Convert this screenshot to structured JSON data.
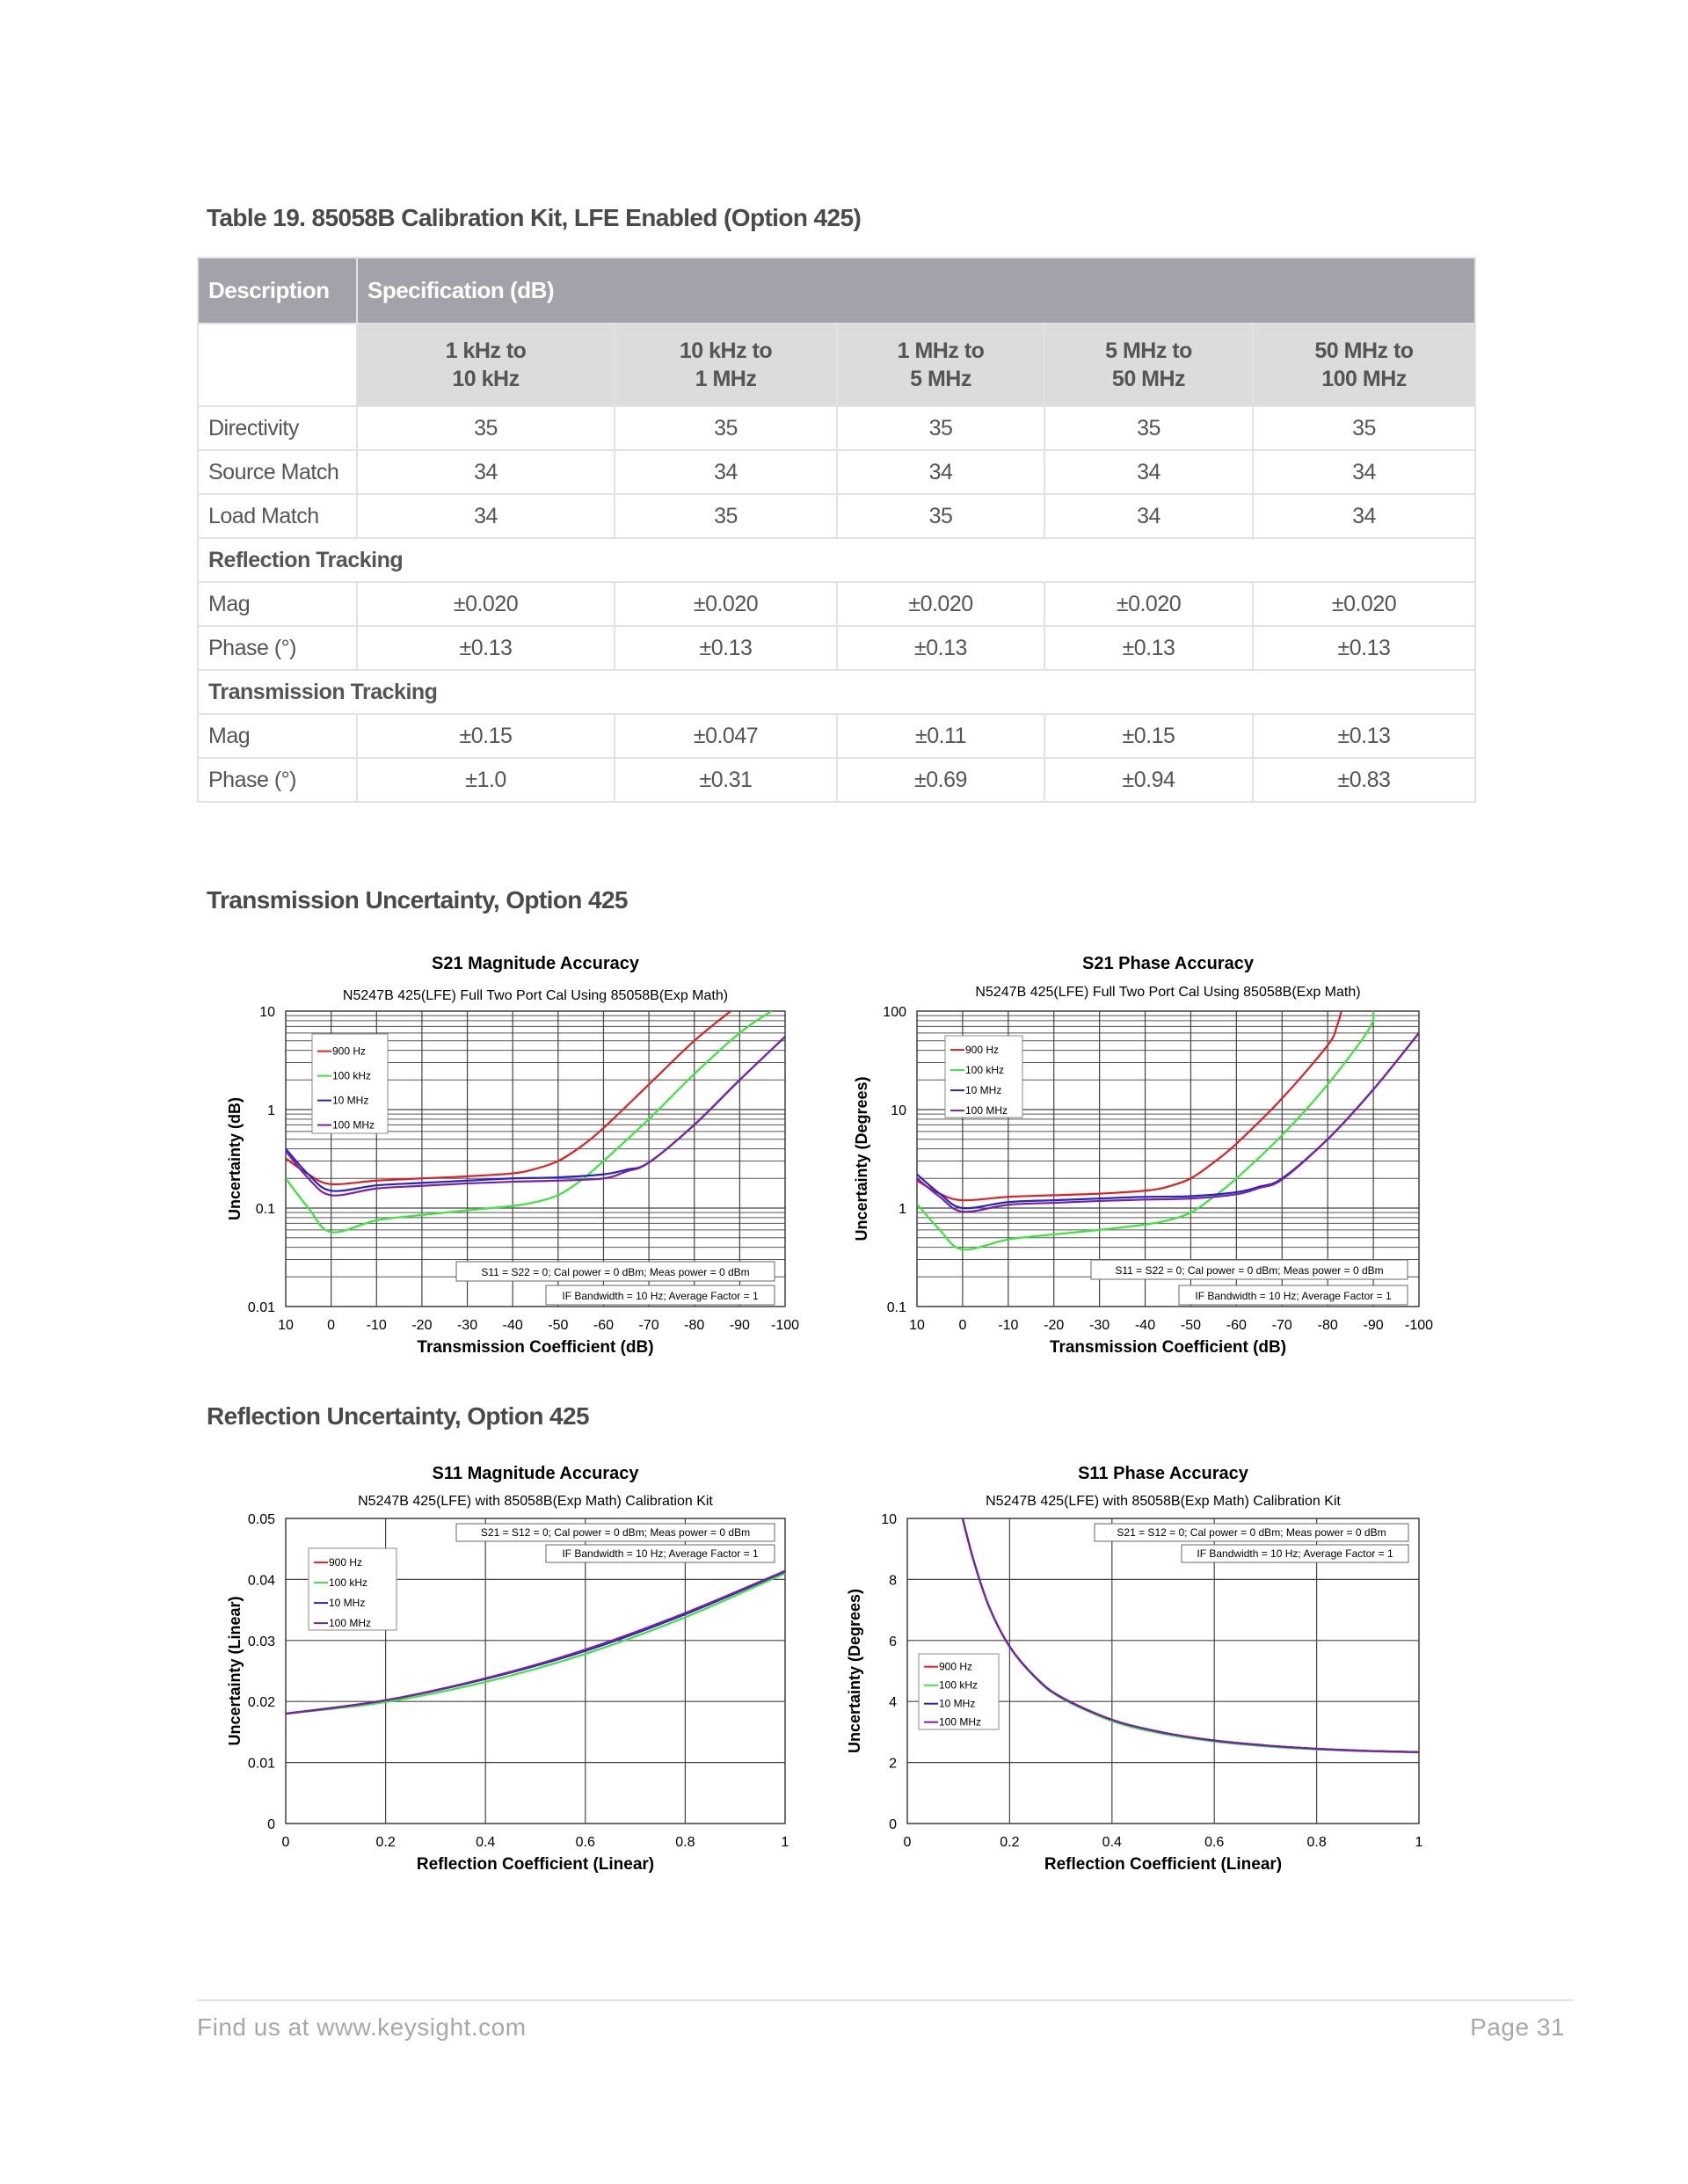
{
  "table": {
    "title": "Table 19. 85058B Calibration Kit, LFE Enabled (Option 425)",
    "header": {
      "description": "Description",
      "specification": "Specification (dB)"
    },
    "bands": [
      [
        "1 kHz to",
        "10 kHz"
      ],
      [
        "10 kHz to",
        "1 MHz"
      ],
      [
        "1 MHz to",
        "5 MHz"
      ],
      [
        "5 MHz to",
        "50 MHz"
      ],
      [
        "50 MHz to",
        "100 MHz"
      ]
    ],
    "rows": [
      {
        "type": "data",
        "label": "Directivity",
        "values": [
          "35",
          "35",
          "35",
          "35",
          "35"
        ]
      },
      {
        "type": "data",
        "label": "Source Match",
        "values": [
          "34",
          "34",
          "34",
          "34",
          "34"
        ]
      },
      {
        "type": "data",
        "label": "Load Match",
        "values": [
          "34",
          "35",
          "35",
          "34",
          "34"
        ]
      },
      {
        "type": "section",
        "label": "Reflection Tracking"
      },
      {
        "type": "data",
        "label": "Mag",
        "values": [
          "±0.020",
          "±0.020",
          "±0.020",
          "±0.020",
          "±0.020"
        ]
      },
      {
        "type": "data",
        "label": "Phase (°)",
        "values": [
          "±0.13",
          "±0.13",
          "±0.13",
          "±0.13",
          "±0.13"
        ]
      },
      {
        "type": "section",
        "label": "Transmission Tracking"
      },
      {
        "type": "data",
        "label": "Mag",
        "values": [
          "±0.15",
          "±0.047",
          "±0.11",
          "±0.15",
          "±0.13"
        ]
      },
      {
        "type": "data",
        "label": "Phase (°)",
        "values": [
          "±1.0",
          "±0.31",
          "±0.69",
          "±0.94",
          "±0.83"
        ]
      }
    ]
  },
  "sections": {
    "transmission": "Transmission Uncertainty, Option 425",
    "reflection": "Reflection Uncertainty, Option 425"
  },
  "colors": {
    "900 Hz": "#e02020",
    "100 kHz": "#3ae63a",
    "10 MHz": "#2424c8",
    "100 MHz": "#7a1fa8"
  },
  "chart_data": [
    {
      "type": "line",
      "title": "S21 Magnitude Accuracy",
      "subtitle": "N5247B 425(LFE) Full Two Port Cal Using 85058B(Exp Math)",
      "xlabel": "Transmission Coefficient (dB)",
      "ylabel": "Uncertainty (dB)",
      "xlim": [
        10,
        -100
      ],
      "ylim": [
        0.01,
        10
      ],
      "yscale": "log",
      "grid": true,
      "xticks": [
        10,
        0,
        -10,
        -20,
        -30,
        -40,
        -50,
        -60,
        -70,
        -80,
        -90,
        -100
      ],
      "yticks": [
        0.01,
        0.1,
        1,
        10
      ],
      "ytick_labels": [
        "0.01",
        "0.1",
        "1",
        "10"
      ],
      "legend": "top-left",
      "notes": [
        "S11 = S22 = 0; Cal power = 0 dBm; Meas power = 0 dBm",
        "IF Bandwidth = 10 Hz; Average Factor = 1"
      ],
      "series": [
        {
          "name": "900 Hz",
          "x": [
            10,
            5,
            0,
            -10,
            -20,
            -30,
            -40,
            -45,
            -50,
            -55,
            -60,
            -70,
            -80,
            -88
          ],
          "y": [
            0.32,
            0.22,
            0.175,
            0.19,
            0.2,
            0.21,
            0.225,
            0.25,
            0.3,
            0.42,
            0.65,
            1.8,
            5,
            10
          ]
        },
        {
          "name": "100 kHz",
          "x": [
            10,
            5,
            0,
            -10,
            -20,
            -30,
            -40,
            -45,
            -50,
            -55,
            -60,
            -70,
            -80,
            -90,
            -97
          ],
          "y": [
            0.2,
            0.1,
            0.057,
            0.075,
            0.085,
            0.095,
            0.105,
            0.115,
            0.135,
            0.19,
            0.3,
            0.8,
            2.3,
            6,
            10
          ]
        },
        {
          "name": "10 MHz",
          "x": [
            10,
            5,
            0,
            -10,
            -20,
            -30,
            -40,
            -50,
            -60,
            -65,
            -70,
            -80,
            -90,
            -100
          ],
          "y": [
            0.4,
            0.22,
            0.15,
            0.17,
            0.18,
            0.19,
            0.2,
            0.205,
            0.22,
            0.245,
            0.29,
            0.7,
            2,
            5.5
          ]
        },
        {
          "name": "100 MHz",
          "x": [
            10,
            5,
            0,
            -10,
            -20,
            -30,
            -40,
            -50,
            -60,
            -65,
            -70,
            -80,
            -90,
            -100
          ],
          "y": [
            0.38,
            0.2,
            0.135,
            0.158,
            0.168,
            0.178,
            0.185,
            0.19,
            0.2,
            0.235,
            0.29,
            0.7,
            2,
            5.5
          ]
        }
      ]
    },
    {
      "type": "line",
      "title": "S21 Phase Accuracy",
      "subtitle": "N5247B 425(LFE) Full Two Port Cal Using 85058B(Exp Math)",
      "xlabel": "Transmission Coefficient (dB)",
      "ylabel": "Uncertainty (Degrees)",
      "xlim": [
        10,
        -100
      ],
      "ylim": [
        0.1,
        100
      ],
      "yscale": "log",
      "grid": true,
      "xticks": [
        10,
        0,
        -10,
        -20,
        -30,
        -40,
        -50,
        -60,
        -70,
        -80,
        -90,
        -100
      ],
      "yticks": [
        0.1,
        1,
        10,
        100
      ],
      "ytick_labels": [
        "0.1",
        "1",
        "10",
        "100"
      ],
      "legend": "top-left",
      "notes": [
        "S11 = S22 = 0; Cal power = 0 dBm; Meas power = 0 dBm",
        "IF Bandwidth = 10 Hz; Average Factor = 1"
      ],
      "series": [
        {
          "name": "900 Hz",
          "x": [
            10,
            5,
            0,
            -10,
            -20,
            -30,
            -40,
            -45,
            -50,
            -55,
            -60,
            -70,
            -80,
            -82,
            -83
          ],
          "y": [
            1.9,
            1.4,
            1.2,
            1.3,
            1.35,
            1.4,
            1.5,
            1.65,
            2,
            2.9,
            4.5,
            13,
            45,
            70,
            100
          ]
        },
        {
          "name": "100 kHz",
          "x": [
            10,
            5,
            0,
            -10,
            -20,
            -30,
            -40,
            -45,
            -50,
            -55,
            -60,
            -70,
            -80,
            -89,
            -90
          ],
          "y": [
            1.1,
            0.6,
            0.38,
            0.48,
            0.54,
            0.6,
            0.68,
            0.75,
            0.9,
            1.3,
            2,
            5.5,
            18,
            65,
            100
          ]
        },
        {
          "name": "10 MHz",
          "x": [
            10,
            5,
            0,
            -10,
            -20,
            -30,
            -40,
            -50,
            -60,
            -65,
            -70,
            -80,
            -90,
            -100
          ],
          "y": [
            2.2,
            1.4,
            1.0,
            1.15,
            1.2,
            1.25,
            1.3,
            1.32,
            1.45,
            1.65,
            2,
            5,
            16,
            60
          ]
        },
        {
          "name": "100 MHz",
          "x": [
            10,
            5,
            0,
            -10,
            -20,
            -30,
            -40,
            -50,
            -60,
            -65,
            -70,
            -80,
            -90,
            -100
          ],
          "y": [
            2.0,
            1.3,
            0.92,
            1.08,
            1.13,
            1.18,
            1.22,
            1.25,
            1.38,
            1.6,
            1.95,
            5,
            16,
            60
          ]
        }
      ]
    },
    {
      "type": "line",
      "title": "S11 Magnitude Accuracy",
      "subtitle": "N5247B 425(LFE) with 85058B(Exp Math) Calibration Kit",
      "xlabel": "Reflection Coefficient (Linear)",
      "ylabel": "Uncertainty (Linear)",
      "xlim": [
        0,
        1
      ],
      "ylim": [
        0,
        0.05
      ],
      "yscale": "linear",
      "grid": true,
      "xticks": [
        0,
        0.2,
        0.4,
        0.6,
        0.8,
        1
      ],
      "xtick_labels": [
        "0",
        "0.2",
        "0.4",
        "0.6",
        "0.8",
        "1"
      ],
      "yticks": [
        0,
        0.01,
        0.02,
        0.03,
        0.04,
        0.05
      ],
      "ytick_labels": [
        "0",
        "0.01",
        "0.02",
        "0.03",
        "0.04",
        "0.05"
      ],
      "legend": "top-left",
      "notes": [
        "S21 = S12 = 0; Cal power = 0 dBm; Meas power = 0 dBm",
        "IF Bandwidth = 10 Hz; Average Factor = 1"
      ],
      "series": [
        {
          "name": "900 Hz",
          "x": [
            0,
            0.2,
            0.4,
            0.6,
            0.8,
            1
          ],
          "y": [
            0.018,
            0.0202,
            0.0237,
            0.0283,
            0.0343,
            0.0413
          ]
        },
        {
          "name": "100 kHz",
          "x": [
            0,
            0.2,
            0.4,
            0.6,
            0.8,
            1
          ],
          "y": [
            0.018,
            0.0199,
            0.0232,
            0.0278,
            0.0338,
            0.041
          ]
        },
        {
          "name": "10 MHz",
          "x": [
            0,
            0.2,
            0.4,
            0.6,
            0.8,
            1
          ],
          "y": [
            0.018,
            0.0202,
            0.0237,
            0.0283,
            0.0343,
            0.0413
          ]
        },
        {
          "name": "100 MHz",
          "x": [
            0,
            0.2,
            0.4,
            0.6,
            0.8,
            1
          ],
          "y": [
            0.018,
            0.0202,
            0.0238,
            0.0285,
            0.0345,
            0.0414
          ]
        }
      ]
    },
    {
      "type": "line",
      "title": "S11 Phase Accuracy",
      "subtitle": "N5247B 425(LFE) with 85058B(Exp Math) Calibration Kit",
      "xlabel": "Reflection Coefficient (Linear)",
      "ylabel": "Uncertainty (Degrees)",
      "xlim": [
        0,
        1
      ],
      "ylim": [
        0,
        10
      ],
      "yscale": "linear",
      "grid": true,
      "xticks": [
        0,
        0.2,
        0.4,
        0.6,
        0.8,
        1
      ],
      "xtick_labels": [
        "0",
        "0.2",
        "0.4",
        "0.6",
        "0.8",
        "1"
      ],
      "yticks": [
        0,
        2,
        4,
        6,
        8,
        10
      ],
      "ytick_labels": [
        "0",
        "2",
        "4",
        "6",
        "8",
        "10"
      ],
      "legend": "middle-left",
      "notes": [
        "S21 = S12 = 0; Cal power = 0 dBm; Meas power = 0 dBm",
        "IF Bandwidth = 10 Hz; Average Factor = 1"
      ],
      "series": [
        {
          "name": "900 Hz",
          "x": [
            0.108,
            0.13,
            0.16,
            0.2,
            0.25,
            0.3,
            0.4,
            0.5,
            0.6,
            0.7,
            0.8,
            0.9,
            1
          ],
          "y": [
            10,
            8.6,
            7.1,
            5.8,
            4.8,
            4.15,
            3.4,
            2.98,
            2.72,
            2.56,
            2.45,
            2.38,
            2.34
          ]
        },
        {
          "name": "100 kHz",
          "x": [
            0.108,
            0.13,
            0.16,
            0.2,
            0.25,
            0.3,
            0.4,
            0.5,
            0.6,
            0.7,
            0.8,
            0.9,
            1
          ],
          "y": [
            10,
            8.6,
            7.1,
            5.8,
            4.78,
            4.12,
            3.36,
            2.94,
            2.69,
            2.53,
            2.43,
            2.37,
            2.33
          ]
        },
        {
          "name": "10 MHz",
          "x": [
            0.108,
            0.13,
            0.16,
            0.2,
            0.25,
            0.3,
            0.4,
            0.5,
            0.6,
            0.7,
            0.8,
            0.9,
            1
          ],
          "y": [
            10,
            8.6,
            7.1,
            5.8,
            4.8,
            4.15,
            3.4,
            2.98,
            2.72,
            2.56,
            2.45,
            2.38,
            2.34
          ]
        },
        {
          "name": "100 MHz",
          "x": [
            0.108,
            0.13,
            0.16,
            0.2,
            0.25,
            0.3,
            0.4,
            0.5,
            0.6,
            0.7,
            0.8,
            0.9,
            1
          ],
          "y": [
            10,
            8.6,
            7.1,
            5.8,
            4.8,
            4.15,
            3.4,
            2.98,
            2.72,
            2.56,
            2.45,
            2.38,
            2.34
          ]
        }
      ]
    }
  ],
  "footer": {
    "left": "Find us at www.keysight.com",
    "right": "Page 31"
  }
}
